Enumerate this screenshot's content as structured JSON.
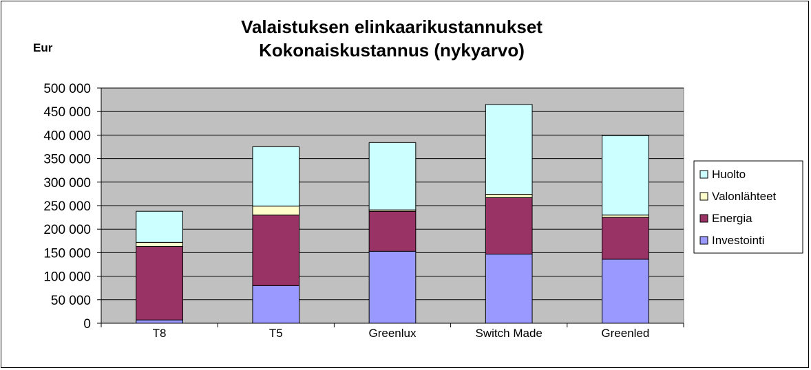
{
  "chart_data": {
    "type": "bar",
    "stacked": true,
    "title": [
      "Valaistuksen elinkaarikustannukset",
      "Kokonaiskustannus (nykyarvo)"
    ],
    "ylabel": "Eur",
    "xlabel": "",
    "ylim": [
      0,
      500000
    ],
    "ytick_step": 50000,
    "ytick_labels": [
      "0",
      "50 000",
      "100 000",
      "150 000",
      "200 000",
      "250 000",
      "300 000",
      "350 000",
      "400 000",
      "450 000",
      "500 000"
    ],
    "grid": true,
    "legend_position": "right",
    "categories": [
      "T8",
      "T5",
      "Greenlux",
      "Switch Made",
      "Greenled"
    ],
    "series": [
      {
        "name": "Investointi",
        "color": "#9999ff",
        "values": [
          7000,
          80000,
          153000,
          147000,
          136000
        ]
      },
      {
        "name": "Energia",
        "color": "#993366",
        "values": [
          156000,
          150000,
          85000,
          120000,
          89000
        ]
      },
      {
        "name": "Valonlähteet",
        "color": "#ffffcc",
        "values": [
          9000,
          19000,
          3000,
          7000,
          5000
        ]
      },
      {
        "name": "Huolto",
        "color": "#ccffff",
        "values": [
          66000,
          126000,
          143000,
          191000,
          169000
        ]
      }
    ],
    "plot_background": "#c0c0c0"
  }
}
